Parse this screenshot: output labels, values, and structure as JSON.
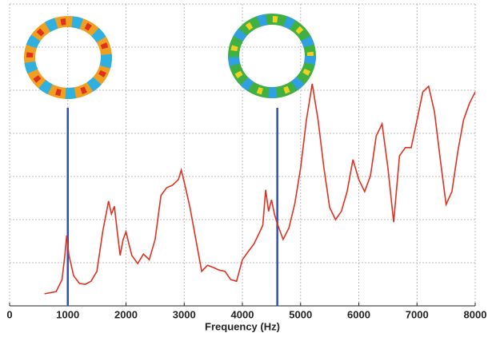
{
  "chart_data": {
    "type": "line",
    "xlabel": "Frequency (Hz)",
    "x": [
      600,
      800,
      900,
      950,
      980,
      1020,
      1100,
      1200,
      1300,
      1400,
      1500,
      1600,
      1700,
      1750,
      1800,
      1850,
      1900,
      1950,
      2000,
      2050,
      2100,
      2200,
      2300,
      2400,
      2500,
      2600,
      2700,
      2800,
      2900,
      2950,
      3000,
      3100,
      3200,
      3300,
      3400,
      3500,
      3600,
      3700,
      3800,
      3900,
      4000,
      4100,
      4200,
      4300,
      4350,
      4400,
      4450,
      4500,
      4550,
      4600,
      4650,
      4700,
      4800,
      4900,
      5000,
      5100,
      5200,
      5300,
      5400,
      5500,
      5600,
      5700,
      5800,
      5900,
      6000,
      6100,
      6200,
      6300,
      6400,
      6500,
      6600,
      6700,
      6800,
      6900,
      7000,
      7100,
      7200,
      7300,
      7400,
      7500,
      7600,
      7700,
      7800,
      7900,
      8000
    ],
    "series": [
      {
        "color": "#e03020",
        "values": [
          0.28,
          0.33,
          0.61,
          1.17,
          1.63,
          1.17,
          0.7,
          0.52,
          0.5,
          0.57,
          0.8,
          1.72,
          2.43,
          2.13,
          2.31,
          1.72,
          1.17,
          1.54,
          1.72,
          1.44,
          1.17,
          0.98,
          1.2,
          1.07,
          1.54,
          2.56,
          2.74,
          2.8,
          2.93,
          3.15,
          2.87,
          2.28,
          1.54,
          0.8,
          0.94,
          0.89,
          0.83,
          0.8,
          0.61,
          0.57,
          1.07,
          1.26,
          1.44,
          1.72,
          1.87,
          2.69,
          2.19,
          2.46,
          2.13,
          1.91,
          1.72,
          1.54,
          1.81,
          2.37,
          3.2,
          4.31,
          5.15,
          4.31,
          3.2,
          2.28,
          2.0,
          2.19,
          2.65,
          3.39,
          2.93,
          2.65,
          3.02,
          3.94,
          4.22,
          3.2,
          1.94,
          3.48,
          3.67,
          3.67,
          4.31,
          4.96,
          5.09,
          4.5,
          3.39,
          2.35,
          2.65,
          3.57,
          4.31,
          4.69,
          4.96
        ]
      }
    ],
    "markers": [
      1000,
      4600
    ],
    "marker_color": "#3050b0",
    "xlim": [
      0,
      8000
    ],
    "xticks": [
      0,
      1000,
      2000,
      3000,
      4000,
      5000,
      6000,
      7000,
      8000
    ],
    "ylim": [
      0,
      7
    ],
    "yticks": [
      1,
      2,
      3,
      4,
      5,
      6,
      7
    ],
    "grid": true
  }
}
